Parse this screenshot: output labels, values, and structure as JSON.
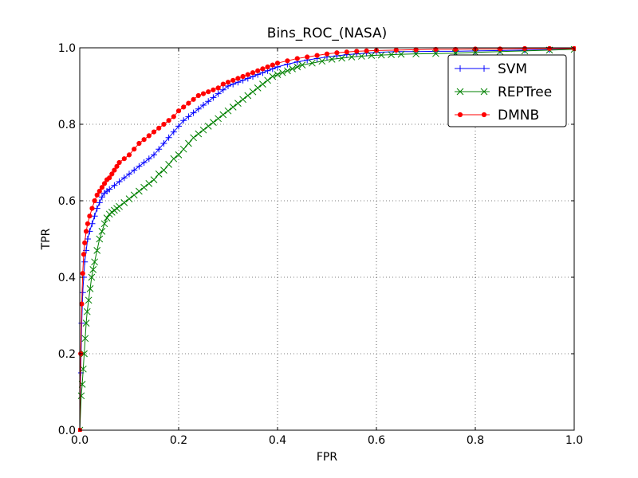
{
  "chart_data": {
    "type": "line",
    "title": "Bins_ROC_(NASA)",
    "xlabel": "FPR",
    "ylabel": "TPR",
    "xlim": [
      0,
      1
    ],
    "ylim": [
      0,
      1
    ],
    "xticks": [
      "0.0",
      "0.2",
      "0.4",
      "0.6",
      "0.8",
      "1.0"
    ],
    "yticks": [
      "0.0",
      "0.2",
      "0.4",
      "0.6",
      "0.8",
      "1.0"
    ],
    "grid": true,
    "legend_position": "top-right",
    "series": [
      {
        "name": "SVM",
        "color": "#0000ff",
        "marker": "plus",
        "x": [
          0,
          0.002,
          0.004,
          0.006,
          0.008,
          0.01,
          0.013,
          0.016,
          0.02,
          0.025,
          0.03,
          0.035,
          0.04,
          0.045,
          0.05,
          0.055,
          0.06,
          0.07,
          0.08,
          0.09,
          0.1,
          0.11,
          0.12,
          0.13,
          0.14,
          0.15,
          0.16,
          0.17,
          0.18,
          0.19,
          0.2,
          0.21,
          0.22,
          0.23,
          0.24,
          0.25,
          0.26,
          0.27,
          0.28,
          0.29,
          0.3,
          0.31,
          0.32,
          0.33,
          0.34,
          0.35,
          0.36,
          0.37,
          0.38,
          0.39,
          0.4,
          0.42,
          0.44,
          0.46,
          0.48,
          0.5,
          0.52,
          0.54,
          0.56,
          0.58,
          0.6,
          0.64,
          0.68,
          0.72,
          0.76,
          0.8,
          0.85,
          0.9,
          0.95,
          1.0
        ],
        "y": [
          0,
          0.15,
          0.28,
          0.36,
          0.4,
          0.44,
          0.47,
          0.5,
          0.52,
          0.54,
          0.56,
          0.58,
          0.595,
          0.61,
          0.62,
          0.625,
          0.63,
          0.64,
          0.65,
          0.66,
          0.67,
          0.68,
          0.69,
          0.7,
          0.71,
          0.72,
          0.735,
          0.75,
          0.765,
          0.78,
          0.795,
          0.81,
          0.82,
          0.83,
          0.84,
          0.85,
          0.86,
          0.87,
          0.88,
          0.89,
          0.9,
          0.905,
          0.91,
          0.915,
          0.92,
          0.925,
          0.93,
          0.935,
          0.94,
          0.945,
          0.95,
          0.957,
          0.963,
          0.968,
          0.972,
          0.976,
          0.979,
          0.982,
          0.984,
          0.986,
          0.988,
          0.99,
          0.99,
          0.991,
          0.991,
          0.992,
          0.993,
          0.994,
          0.995,
          0.996
        ]
      },
      {
        "name": "REPTree",
        "color": "#008000",
        "marker": "x",
        "x": [
          0,
          0.003,
          0.005,
          0.007,
          0.009,
          0.011,
          0.013,
          0.015,
          0.018,
          0.021,
          0.024,
          0.027,
          0.03,
          0.035,
          0.04,
          0.045,
          0.05,
          0.055,
          0.06,
          0.065,
          0.07,
          0.075,
          0.08,
          0.09,
          0.1,
          0.11,
          0.12,
          0.13,
          0.14,
          0.15,
          0.16,
          0.17,
          0.18,
          0.19,
          0.2,
          0.21,
          0.22,
          0.23,
          0.24,
          0.25,
          0.26,
          0.27,
          0.28,
          0.29,
          0.3,
          0.31,
          0.32,
          0.33,
          0.34,
          0.35,
          0.36,
          0.37,
          0.38,
          0.39,
          0.4,
          0.41,
          0.42,
          0.43,
          0.44,
          0.45,
          0.47,
          0.49,
          0.51,
          0.53,
          0.55,
          0.57,
          0.59,
          0.61,
          0.63,
          0.65,
          0.68,
          0.72,
          0.76,
          0.8,
          0.85,
          0.9,
          0.95,
          1.0
        ],
        "y": [
          0,
          0.09,
          0.12,
          0.16,
          0.2,
          0.24,
          0.28,
          0.31,
          0.34,
          0.37,
          0.4,
          0.42,
          0.44,
          0.47,
          0.5,
          0.52,
          0.54,
          0.555,
          0.565,
          0.57,
          0.575,
          0.58,
          0.585,
          0.595,
          0.605,
          0.615,
          0.625,
          0.635,
          0.645,
          0.655,
          0.67,
          0.68,
          0.695,
          0.71,
          0.72,
          0.735,
          0.75,
          0.765,
          0.775,
          0.785,
          0.795,
          0.805,
          0.815,
          0.825,
          0.835,
          0.845,
          0.855,
          0.865,
          0.875,
          0.885,
          0.895,
          0.905,
          0.915,
          0.925,
          0.93,
          0.935,
          0.94,
          0.945,
          0.95,
          0.955,
          0.96,
          0.965,
          0.97,
          0.973,
          0.976,
          0.978,
          0.98,
          0.981,
          0.982,
          0.983,
          0.984,
          0.985,
          0.986,
          0.988,
          0.99,
          0.992,
          0.994,
          0.996
        ]
      },
      {
        "name": "DMNB",
        "color": "#ff0000",
        "marker": "dot",
        "x": [
          0,
          0.002,
          0.004,
          0.006,
          0.008,
          0.01,
          0.013,
          0.016,
          0.02,
          0.025,
          0.03,
          0.035,
          0.04,
          0.045,
          0.05,
          0.055,
          0.06,
          0.065,
          0.07,
          0.075,
          0.08,
          0.09,
          0.1,
          0.11,
          0.12,
          0.13,
          0.14,
          0.15,
          0.16,
          0.17,
          0.18,
          0.19,
          0.2,
          0.21,
          0.22,
          0.23,
          0.24,
          0.25,
          0.26,
          0.27,
          0.28,
          0.29,
          0.3,
          0.31,
          0.32,
          0.33,
          0.34,
          0.35,
          0.36,
          0.37,
          0.38,
          0.39,
          0.4,
          0.42,
          0.44,
          0.46,
          0.48,
          0.5,
          0.52,
          0.54,
          0.56,
          0.58,
          0.6,
          0.64,
          0.68,
          0.72,
          0.76,
          0.8,
          0.85,
          0.9,
          0.95,
          1.0
        ],
        "y": [
          0,
          0.2,
          0.33,
          0.41,
          0.46,
          0.49,
          0.52,
          0.54,
          0.56,
          0.58,
          0.6,
          0.615,
          0.625,
          0.635,
          0.645,
          0.655,
          0.66,
          0.67,
          0.68,
          0.69,
          0.7,
          0.71,
          0.72,
          0.735,
          0.75,
          0.76,
          0.77,
          0.78,
          0.79,
          0.8,
          0.81,
          0.82,
          0.835,
          0.845,
          0.855,
          0.865,
          0.875,
          0.88,
          0.885,
          0.89,
          0.895,
          0.905,
          0.91,
          0.915,
          0.92,
          0.925,
          0.93,
          0.935,
          0.94,
          0.945,
          0.95,
          0.955,
          0.96,
          0.966,
          0.972,
          0.976,
          0.98,
          0.984,
          0.987,
          0.989,
          0.991,
          0.992,
          0.993,
          0.994,
          0.995,
          0.996,
          0.996,
          0.997,
          0.997,
          0.998,
          0.998,
          0.998
        ]
      }
    ]
  }
}
